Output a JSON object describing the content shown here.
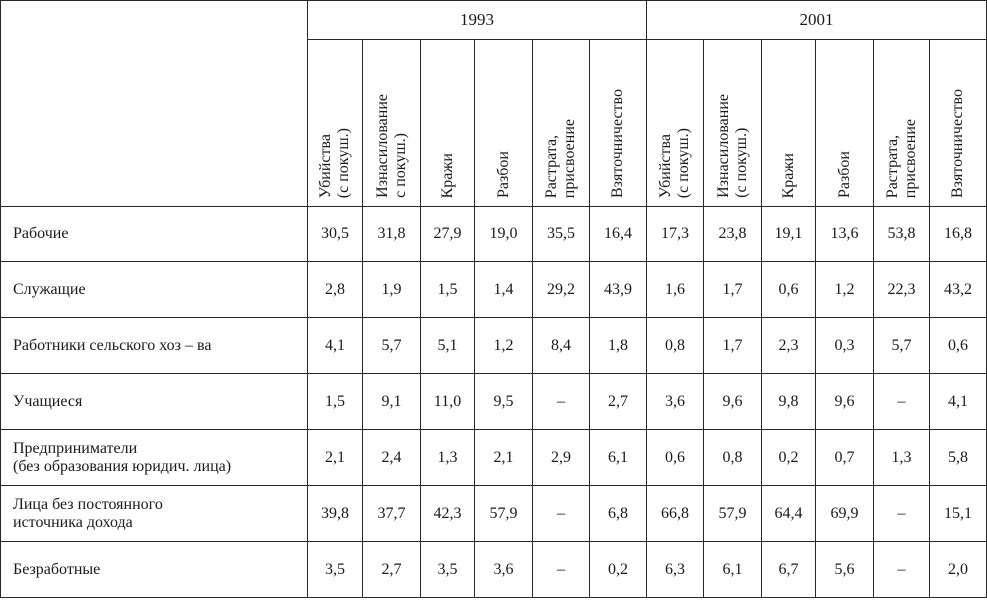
{
  "years": [
    "1993",
    "2001"
  ],
  "columns": [
    "Убийства\n(с покуш.)",
    "Изнасилование\nс покуш.)",
    "Кражи",
    "Разбои",
    "Растрата,\nприсвоение",
    "Взяточничество"
  ],
  "columns_2001": [
    "Убийства\n(с покуш.)",
    "Изнасилование\n(с покуш.)",
    "Кражи",
    "Разбои",
    "Растрата,\nприсвоение",
    "Взяточничество"
  ],
  "rows": [
    {
      "label": "Рабочие",
      "values": [
        "30,5",
        "31,8",
        "27,9",
        "19,0",
        "35,5",
        "16,4",
        "17,3",
        "23,8",
        "19,1",
        "13,6",
        "53,8",
        "16,8"
      ]
    },
    {
      "label": "Служащие",
      "values": [
        "2,8",
        "1,9",
        "1,5",
        "1,4",
        "29,2",
        "43,9",
        "1,6",
        "1,7",
        "0,6",
        "1,2",
        "22,3",
        "43,2"
      ]
    },
    {
      "label": "Работники сельского хоз – ва",
      "values": [
        "4,1",
        "5,7",
        "5,1",
        "1,2",
        "8,4",
        "1,8",
        "0,8",
        "1,7",
        "2,3",
        "0,3",
        "5,7",
        "0,6"
      ]
    },
    {
      "label": "Учащиеся",
      "values": [
        "1,5",
        "9,1",
        "11,0",
        "9,5",
        "–",
        "2,7",
        "3,6",
        "9,6",
        "9,8",
        "9,6",
        "–",
        "4,1"
      ]
    },
    {
      "label": "Предприниматели\n(без образования юридич. лица)",
      "values": [
        "2,1",
        "2,4",
        "1,3",
        "2,1",
        "2,9",
        "6,1",
        "0,6",
        "0,8",
        "0,2",
        "0,7",
        "1,3",
        "5,8"
      ]
    },
    {
      "label": "Лица без постоянного\nисточника дохода",
      "values": [
        "39,8",
        "37,7",
        "42,3",
        "57,9",
        "–",
        "6,8",
        "66,8",
        "57,9",
        "64,4",
        "69,9",
        "–",
        "15,1"
      ]
    },
    {
      "label": "Безработные",
      "values": [
        "3,5",
        "2,7",
        "3,5",
        "3,6",
        "–",
        "0,2",
        "6,3",
        "6,1",
        "6,7",
        "5,6",
        "–",
        "2,0"
      ]
    }
  ]
}
